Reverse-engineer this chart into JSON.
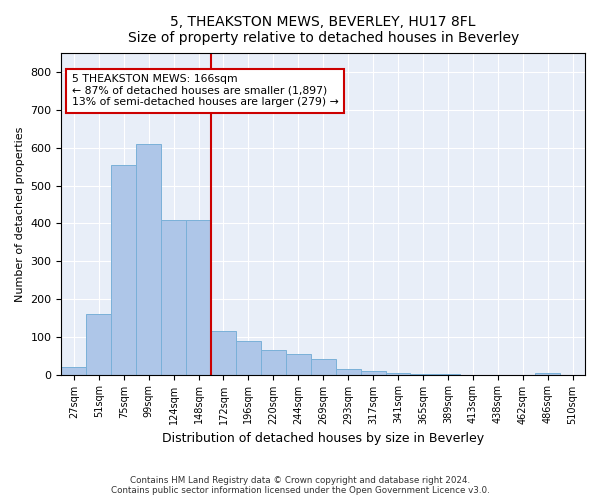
{
  "title": "5, THEAKSTON MEWS, BEVERLEY, HU17 8FL",
  "subtitle": "Size of property relative to detached houses in Beverley",
  "xlabel": "Distribution of detached houses by size in Beverley",
  "ylabel": "Number of detached properties",
  "footnote1": "Contains HM Land Registry data © Crown copyright and database right 2024.",
  "footnote2": "Contains public sector information licensed under the Open Government Licence v3.0.",
  "bar_color": "#aec6e8",
  "bar_edge_color": "#7ab0d8",
  "background_color": "#e8eef8",
  "vline_color": "#cc0000",
  "annotation_text": "5 THEAKSTON MEWS: 166sqm\n← 87% of detached houses are smaller (1,897)\n13% of semi-detached houses are larger (279) →",
  "annotation_box_color": "#ffffff",
  "annotation_border_color": "#cc0000",
  "bin_labels": [
    "27sqm",
    "51sqm",
    "75sqm",
    "99sqm",
    "124sqm",
    "148sqm",
    "172sqm",
    "196sqm",
    "220sqm",
    "244sqm",
    "269sqm",
    "293sqm",
    "317sqm",
    "341sqm",
    "365sqm",
    "389sqm",
    "413sqm",
    "438sqm",
    "462sqm",
    "486sqm",
    "510sqm"
  ],
  "counts": [
    20,
    160,
    555,
    610,
    410,
    410,
    115,
    90,
    65,
    55,
    40,
    15,
    10,
    5,
    2,
    1,
    0,
    0,
    0,
    5,
    0
  ],
  "vline_x": 6.0,
  "ylim": [
    0,
    850
  ],
  "yticks": [
    0,
    100,
    200,
    300,
    400,
    500,
    600,
    700,
    800
  ]
}
